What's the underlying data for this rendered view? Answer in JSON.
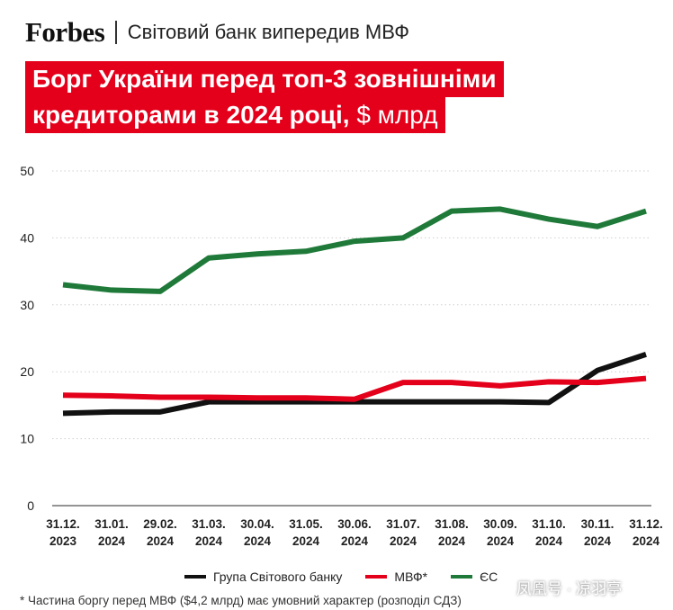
{
  "header": {
    "logo": "Forbes",
    "subtitle": "Світовий банк випередив МВФ"
  },
  "title": {
    "line1": "Борг України перед топ-3 зовнішніми",
    "line2_main": "кредиторами в 2024 році, ",
    "line2_unit": "$ млрд"
  },
  "chart_data": {
    "type": "line",
    "categories": [
      [
        "31.12.",
        "2023"
      ],
      [
        "31.01.",
        "2024"
      ],
      [
        "29.02.",
        "2024"
      ],
      [
        "31.03.",
        "2024"
      ],
      [
        "30.04.",
        "2024"
      ],
      [
        "31.05.",
        "2024"
      ],
      [
        "30.06.",
        "2024"
      ],
      [
        "31.07.",
        "2024"
      ],
      [
        "31.08.",
        "2024"
      ],
      [
        "30.09.",
        "2024"
      ],
      [
        "31.10.",
        "2024"
      ],
      [
        "30.11.",
        "2024"
      ],
      [
        "31.12.",
        "2024"
      ]
    ],
    "ylim": [
      0,
      50
    ],
    "yticks": [
      0,
      10,
      20,
      30,
      40,
      50
    ],
    "grid": true,
    "legend_position": "bottom",
    "series": [
      {
        "name": "Група Світового банку",
        "color": "#111111",
        "values": [
          13.8,
          14.0,
          14.0,
          15.5,
          15.5,
          15.5,
          15.5,
          15.5,
          15.5,
          15.5,
          15.4,
          20.2,
          22.6
        ]
      },
      {
        "name": "МВФ*",
        "color": "#e4001b",
        "values": [
          16.5,
          16.4,
          16.2,
          16.2,
          16.1,
          16.1,
          15.9,
          18.4,
          18.4,
          17.9,
          18.5,
          18.4,
          19.0
        ]
      },
      {
        "name": "ЄС",
        "color": "#1f7a3a",
        "values": [
          33.0,
          32.2,
          32.0,
          37.0,
          37.6,
          38.0,
          39.5,
          40.0,
          44.0,
          44.3,
          42.8,
          41.7,
          44.0
        ]
      }
    ]
  },
  "footnote": "* Частина боргу перед МВФ ($4,2 млрд) має умовний характер (розподіл СДЗ)",
  "watermark": "凤凰号 · 凉羽亭"
}
